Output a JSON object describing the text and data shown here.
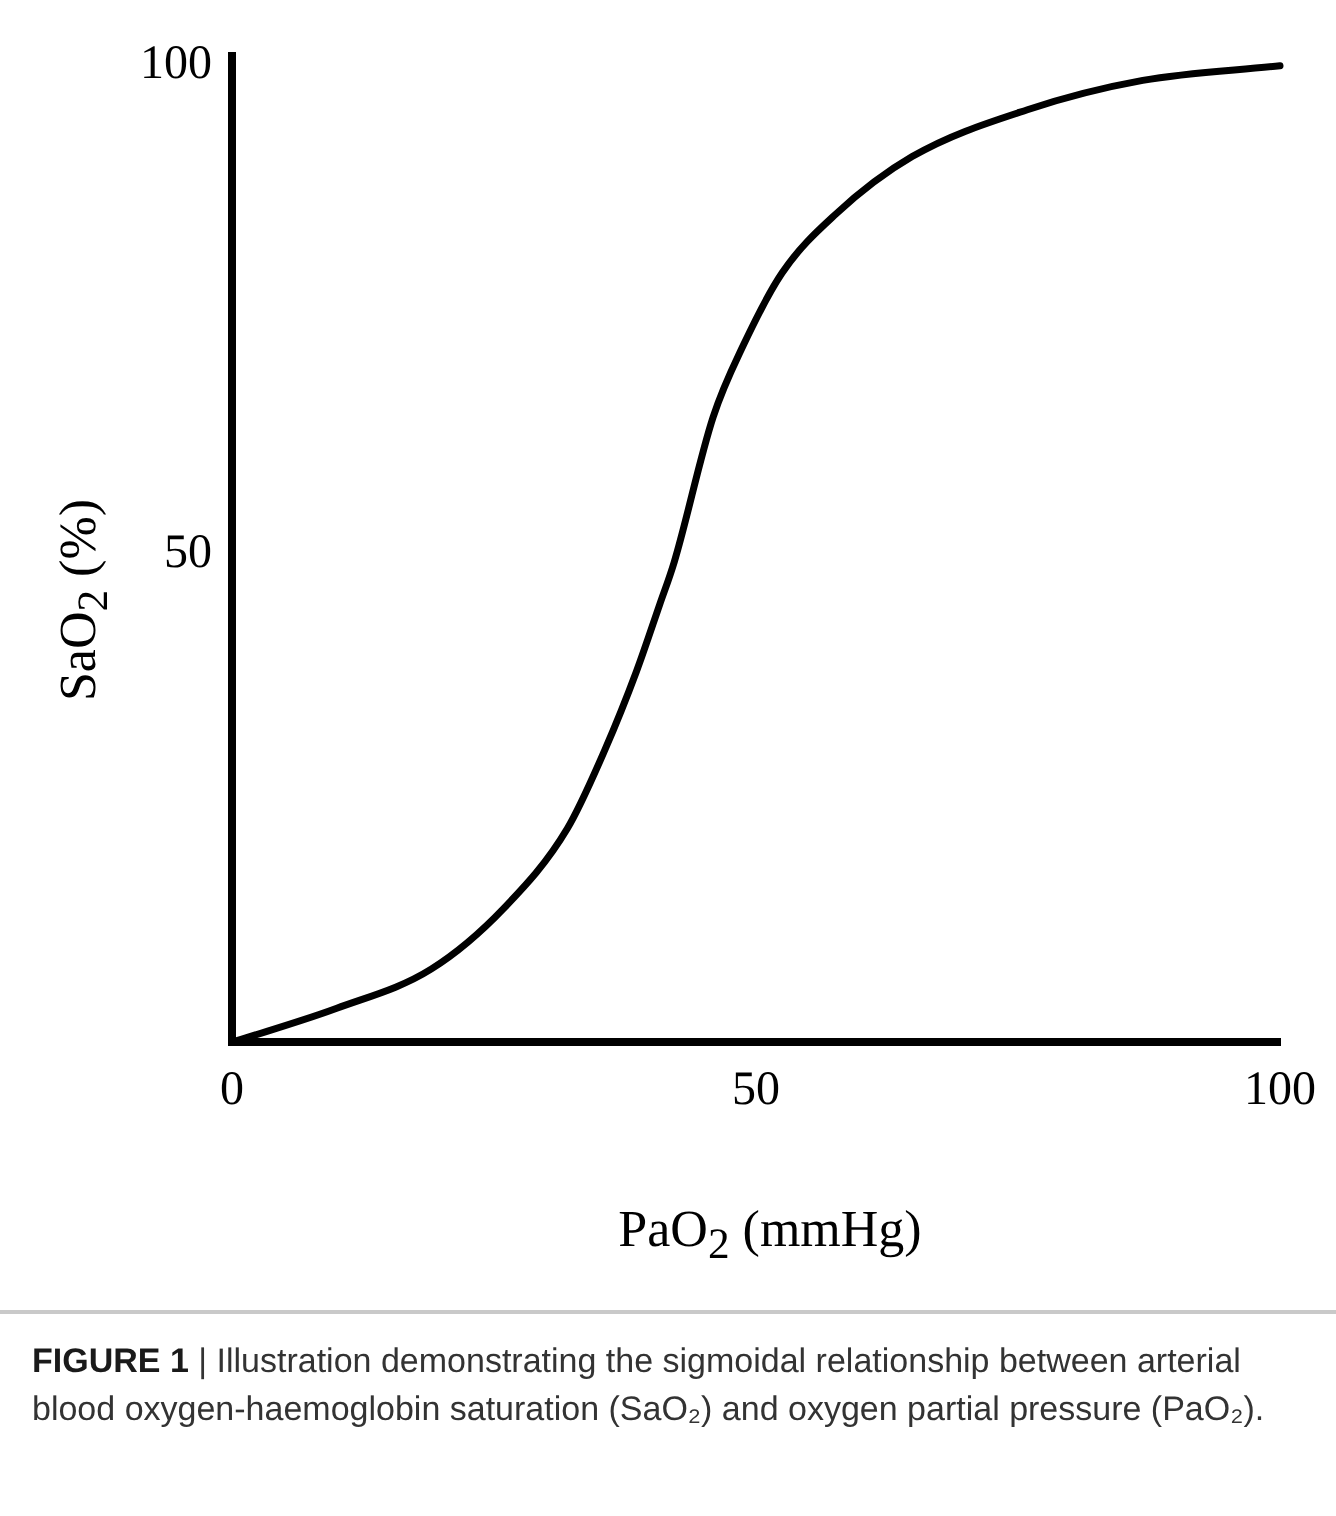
{
  "chart_data": {
    "type": "line",
    "xlabel": "PaO$_{2}$ (mmHg)",
    "ylabel": "SaO$_{2}$ (%)",
    "annotations": [
      "FIGURE 1 | Illustration demonstrating the sigmoidal relationship between arterial blood oxygen-haemoglobin saturation (SaO₂) and oxygen partial pressure (PaO₂)."
    ],
    "x": [
      0,
      10,
      19,
      26,
      32,
      35.6,
      38.6,
      40.8,
      42.2,
      45.9,
      48.8,
      52.5,
      57.6,
      64.9,
      75.9,
      86.9,
      100
    ],
    "series": [
      {
        "color": "#000000",
        "values": [
          0,
          3.5,
          7.5,
          13.8,
          21.9,
          30,
          38,
          44.8,
          49.2,
          64,
          71.4,
          78.8,
          84.8,
          90.7,
          95.5,
          98.5,
          100
        ]
      }
    ],
    "xlim": [
      0,
      100
    ],
    "ylim": [
      0,
      101
    ],
    "xticks": [
      0,
      50,
      100
    ],
    "yticks": [
      50,
      100
    ],
    "grid": false,
    "legend": false,
    "marker": "none",
    "line_style": "solid"
  }
}
